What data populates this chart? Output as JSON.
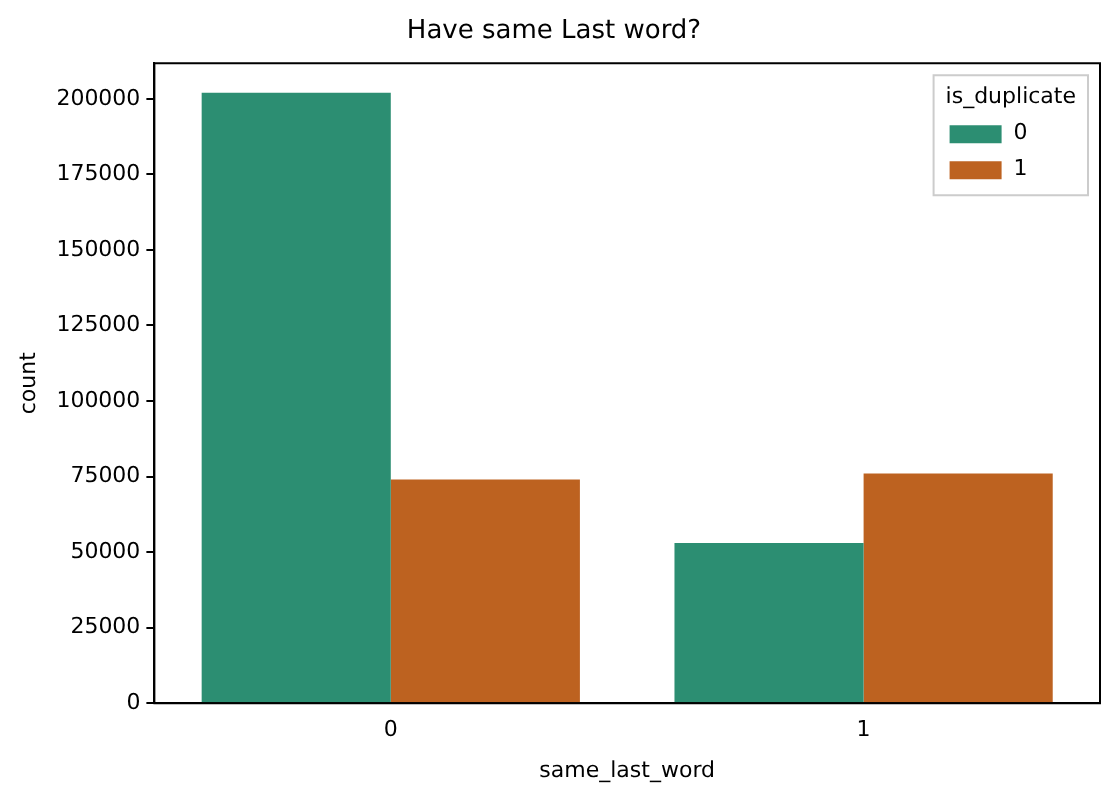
{
  "chart_data": {
    "type": "bar",
    "title": "Have same Last word?",
    "xlabel": "same_last_word",
    "ylabel": "count",
    "legend_title": "is_duplicate",
    "categories": [
      "0",
      "1"
    ],
    "series": [
      {
        "name": "0",
        "color": "#2c8e72",
        "values": [
          202000,
          53000
        ]
      },
      {
        "name": "1",
        "color": "#bd6220",
        "values": [
          74000,
          76000
        ]
      }
    ],
    "ylim": [
      0,
      211800
    ],
    "yticks": [
      0,
      25000,
      50000,
      75000,
      100000,
      125000,
      150000,
      175000,
      200000
    ],
    "grid": false,
    "legend": "top right"
  }
}
